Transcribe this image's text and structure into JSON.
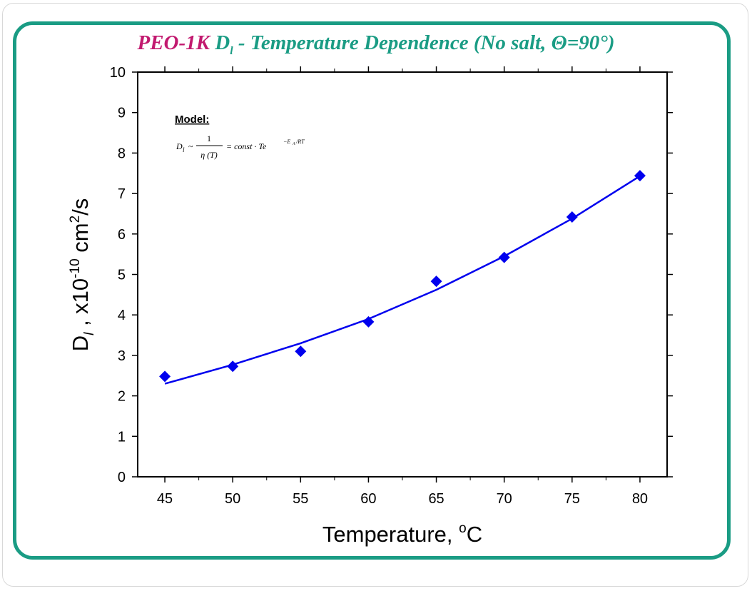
{
  "title": {
    "prefix": "PEO-1K",
    "symbol": "D",
    "symbol_sub": "l",
    "rest": " - Temperature Dependence (No salt, Θ=90°)"
  },
  "model": {
    "heading": "Model:",
    "formula_lhs": "D",
    "formula_lhs_sub": "l",
    "formula_tilde": "~",
    "frac_num": "1",
    "frac_den": "η (T)",
    "formula_eq": "= const · Te",
    "formula_exp": "−E",
    "formula_exp_sub": "A",
    "formula_exp_rest": "/RT"
  },
  "colors": {
    "frame": "#1a9c84",
    "title_prefix": "#c2196f",
    "series": "#0000ee"
  },
  "chart_data": {
    "type": "scatter",
    "xlabel": "Temperature, °C",
    "xlabel_parts": [
      "Temperature, ",
      "o",
      "C"
    ],
    "ylabel_parts": [
      "D",
      "l",
      " , x10",
      "-10",
      " cm",
      "2",
      "/s"
    ],
    "xlim": [
      43,
      82
    ],
    "ylim": [
      0,
      10
    ],
    "xticks": [
      45,
      50,
      55,
      60,
      65,
      70,
      75,
      80
    ],
    "yticks": [
      0,
      1,
      2,
      3,
      4,
      5,
      6,
      7,
      8,
      9,
      10
    ],
    "grid": false,
    "series": [
      {
        "kind": "points",
        "marker": "diamond",
        "x": [
          45,
          50,
          55,
          60,
          65,
          70,
          75,
          80
        ],
        "y": [
          2.48,
          2.73,
          3.1,
          3.83,
          4.83,
          5.42,
          6.42,
          7.44
        ]
      },
      {
        "kind": "fit-line",
        "x": [
          45,
          50,
          55,
          60,
          65,
          70,
          75,
          80
        ],
        "y": [
          2.3,
          2.77,
          3.3,
          3.9,
          4.62,
          5.45,
          6.38,
          7.43
        ]
      }
    ]
  }
}
